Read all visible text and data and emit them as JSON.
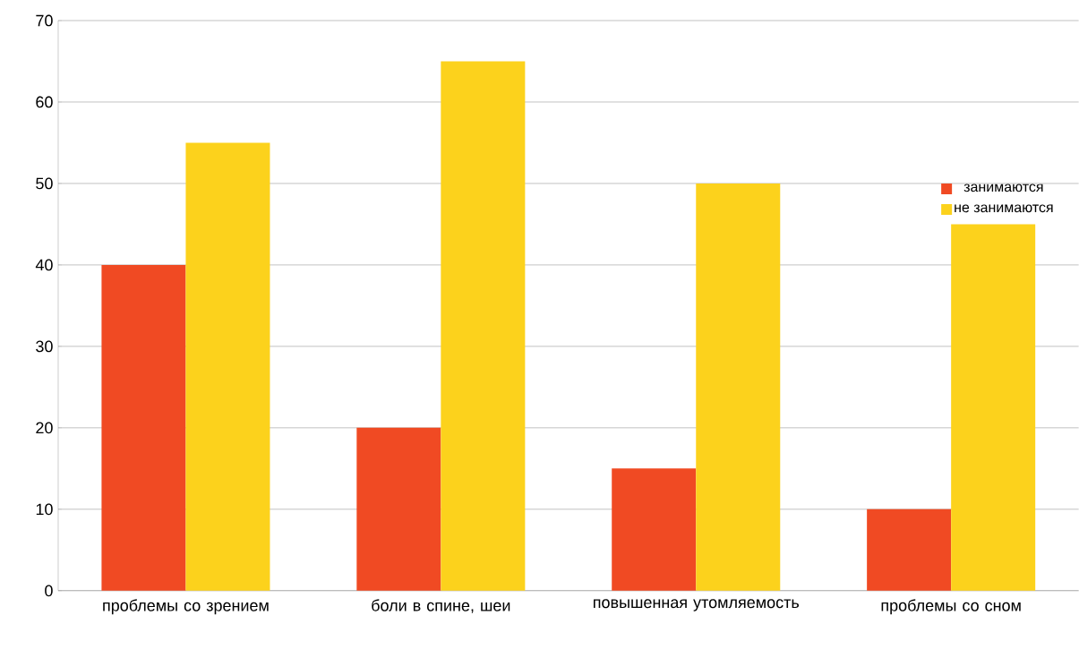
{
  "chart_data": {
    "type": "bar",
    "categories": [
      "проблемы  со зрением",
      "боли в спине, шеи",
      "повышенная утомляемость",
      "проблемы  со сном"
    ],
    "series": [
      {
        "name": "занимаются",
        "color": "#f04a23",
        "values": [
          40,
          20,
          15,
          10
        ]
      },
      {
        "name": "не занимаются",
        "color": "#fcd21c",
        "values": [
          55,
          65,
          50,
          45
        ]
      }
    ],
    "ylim": [
      0,
      70
    ],
    "yticks": [
      0,
      10,
      20,
      30,
      40,
      50,
      60,
      70
    ],
    "grid": "y",
    "legend": "right"
  }
}
